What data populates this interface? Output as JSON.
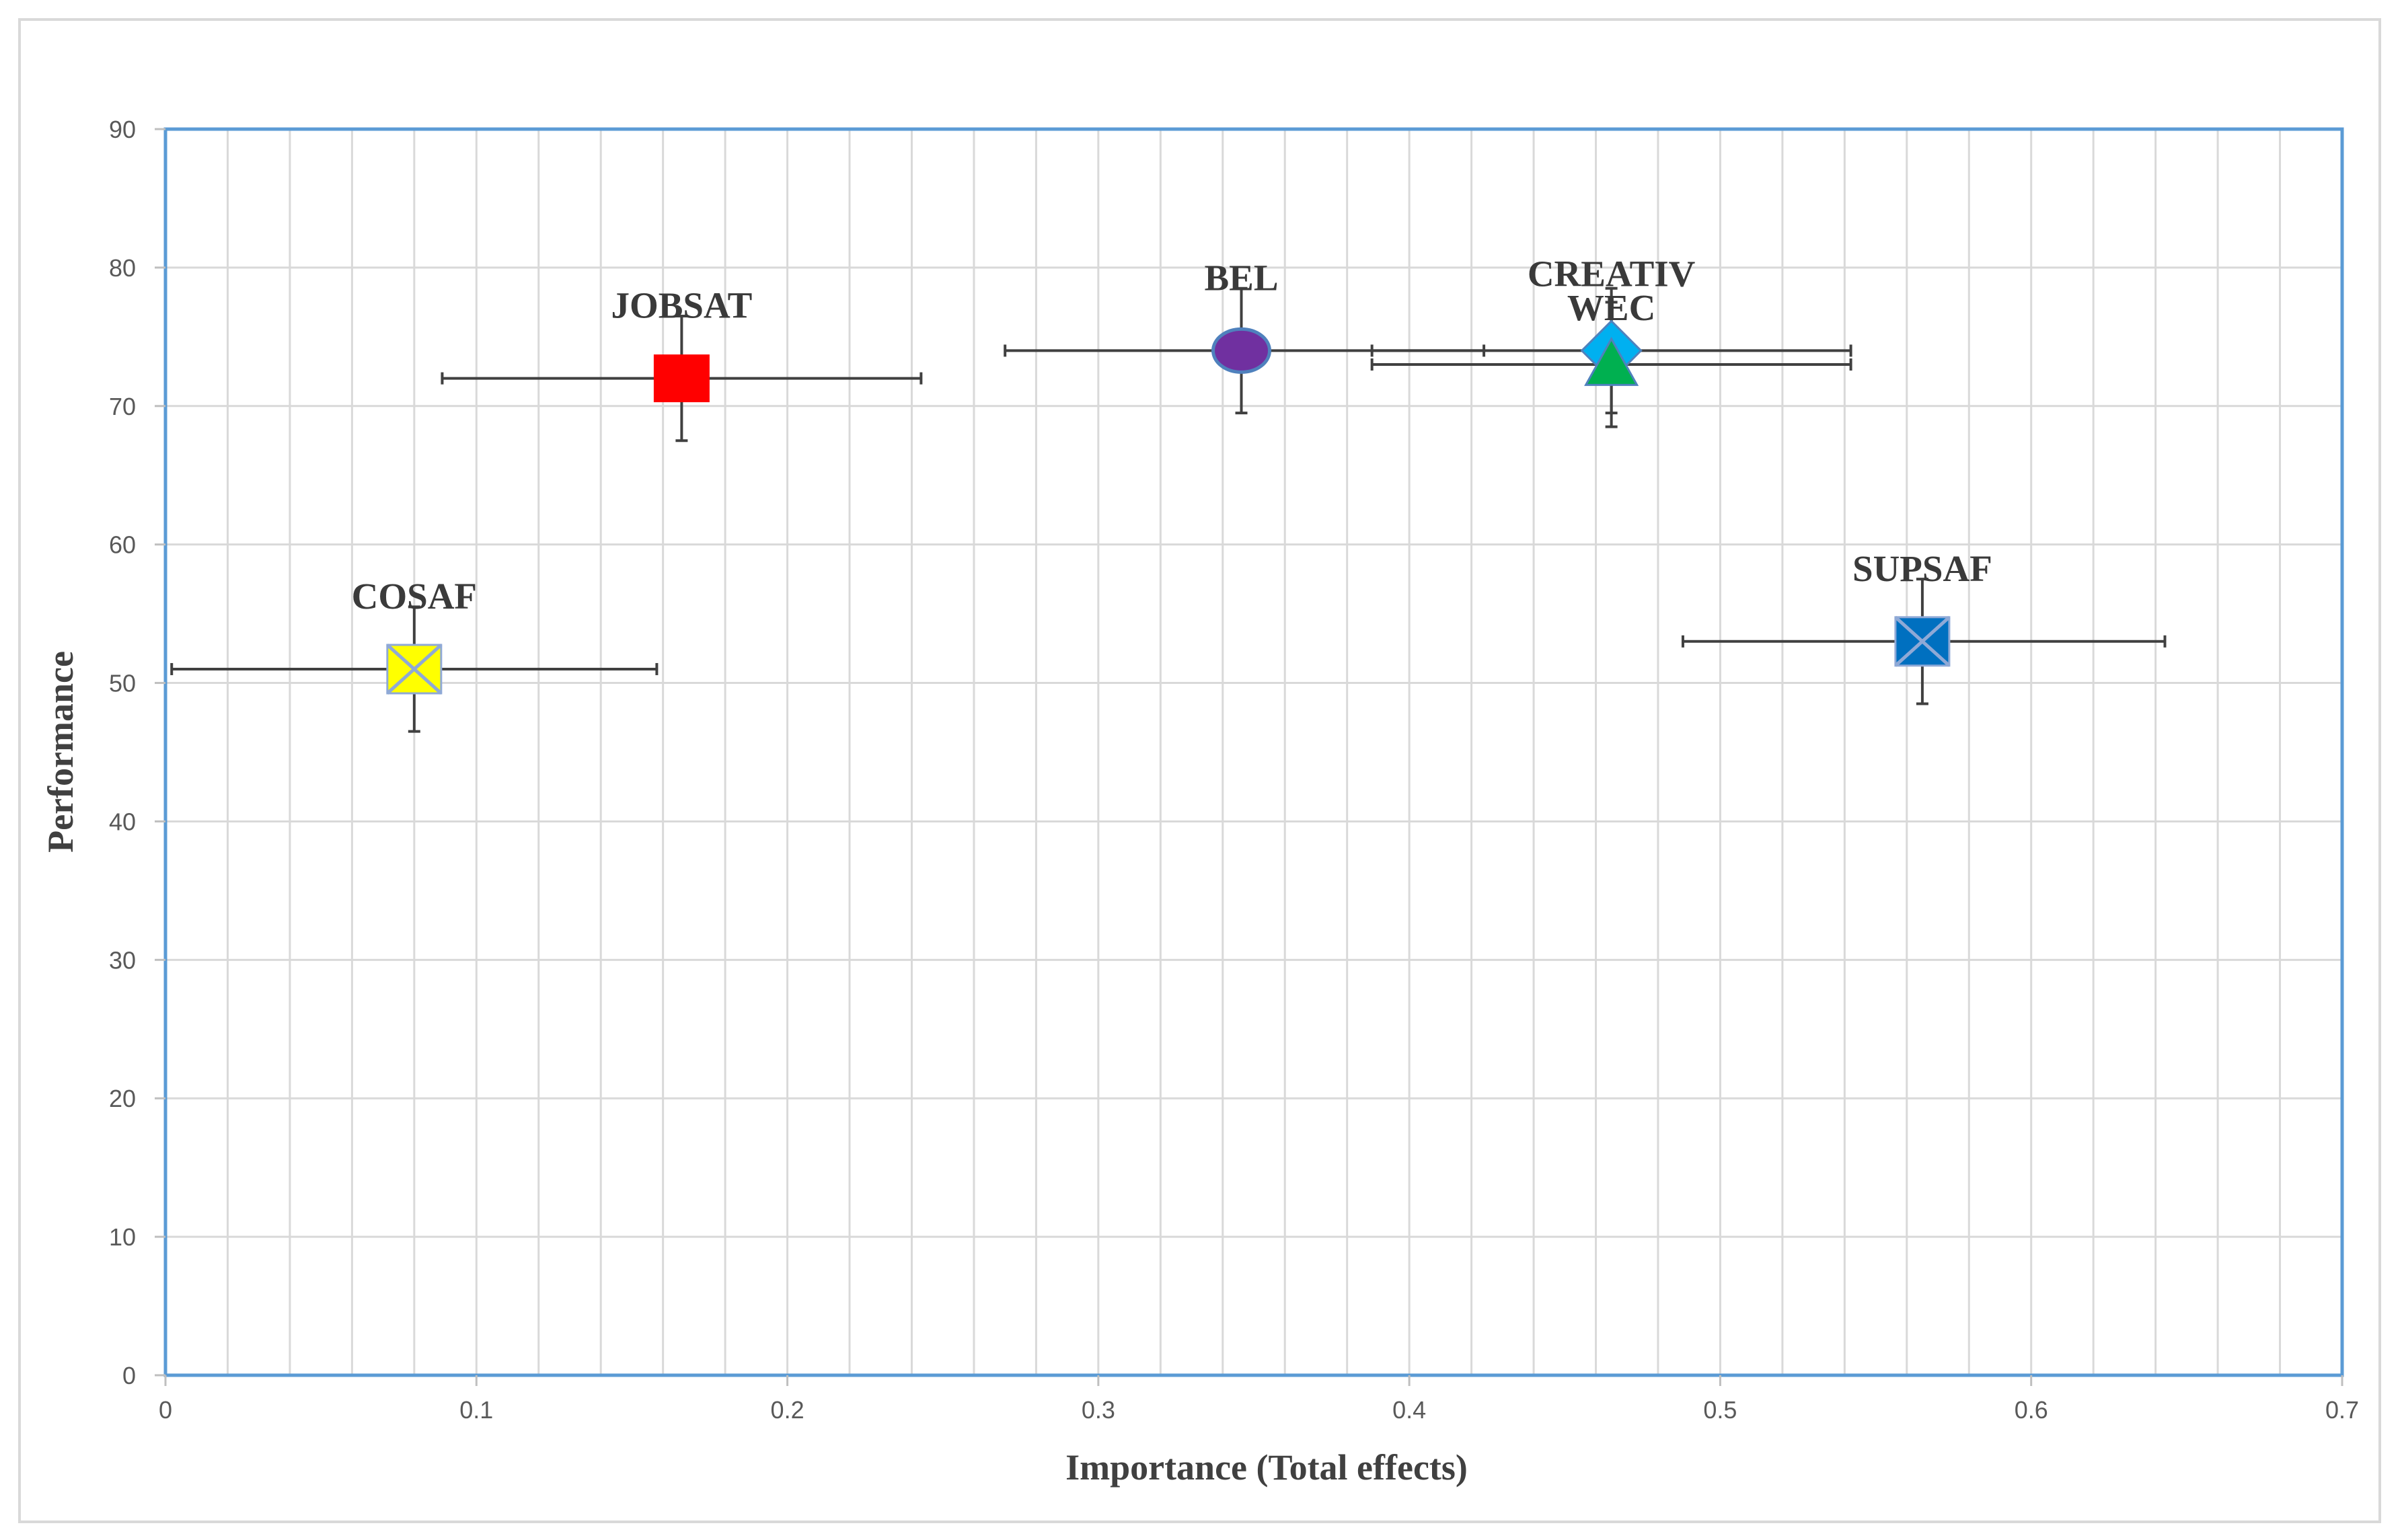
{
  "chart_data": {
    "type": "scatter",
    "title": "",
    "xlabel": "Importance (Total effects)",
    "ylabel": "Performance",
    "xlim": [
      0,
      0.7
    ],
    "ylim": [
      0,
      90
    ],
    "x_ticks": [
      "0",
      "0.1",
      "0.2",
      "0.3",
      "0.4",
      "0.5",
      "0.6",
      "0.7"
    ],
    "y_ticks": [
      "0",
      "10",
      "20",
      "30",
      "40",
      "50",
      "60",
      "70",
      "80",
      "90"
    ],
    "grid": true,
    "legend": "none",
    "points": [
      {
        "label": "COSAF",
        "x": 0.08,
        "y": 51,
        "x_err": [
          0.002,
          0.158
        ],
        "y_err": [
          46.5,
          55.5
        ],
        "marker": "x-square",
        "color": "#ffff00",
        "stroke": "#8fa9d6"
      },
      {
        "label": "JOBSAT",
        "x": 0.166,
        "y": 72,
        "x_err": [
          0.089,
          0.243
        ],
        "y_err": [
          67.5,
          76.5
        ],
        "marker": "square",
        "color": "#ff0000",
        "stroke": "#ff0000"
      },
      {
        "label": "BEL",
        "x": 0.346,
        "y": 74,
        "x_err": [
          0.27,
          0.424
        ],
        "y_err": [
          69.5,
          78.5
        ],
        "marker": "circle",
        "color": "#7030a0",
        "stroke": "#4f81bd"
      },
      {
        "label": "CREATIV",
        "x": 0.465,
        "y": 74,
        "x_err": [
          0.388,
          0.542
        ],
        "y_err": [
          69.5,
          78.5
        ],
        "marker": "diamond",
        "color": "#00b0f0",
        "stroke": "#4f81bd"
      },
      {
        "label": "WEC",
        "x": 0.465,
        "y": 73,
        "x_err": [
          0.388,
          0.542
        ],
        "y_err": [
          68.5,
          77.5
        ],
        "marker": "triangle",
        "color": "#00b050",
        "stroke": "#4f81bd"
      },
      {
        "label": "SUPSAF",
        "x": 0.565,
        "y": 53,
        "x_err": [
          0.488,
          0.643
        ],
        "y_err": [
          48.5,
          57.5
        ],
        "marker": "x-square",
        "color": "#0070c0",
        "stroke": "#8fa9d6"
      }
    ]
  }
}
